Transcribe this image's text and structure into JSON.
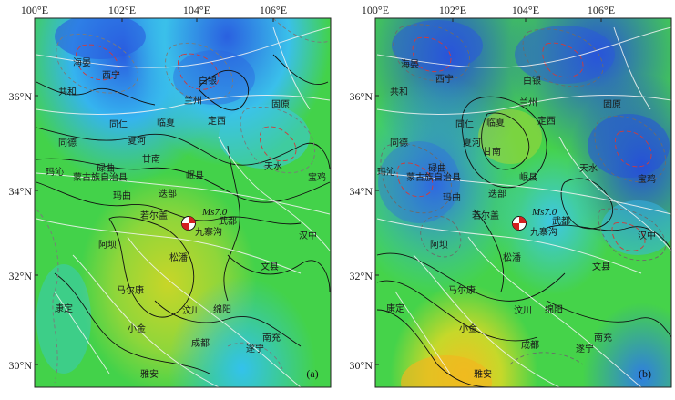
{
  "figure": {
    "x_ticks": [
      "100°E",
      "102°E",
      "104°E",
      "106°E"
    ],
    "y_ticks": [
      "36°N",
      "34°N",
      "32°N",
      "30°N"
    ],
    "earthquake_label": "Ms7.0",
    "cities": [
      "海晏",
      "西宁",
      "共和",
      "白银",
      "兰州",
      "同仁",
      "临夏",
      "定西",
      "固原",
      "同德",
      "夏河",
      "玛沁",
      "蒙古族自治县",
      "碌曲",
      "甘南",
      "岷县",
      "天水",
      "宝鸡",
      "玛曲",
      "迭部",
      "若尔盖",
      "九寨沟",
      "武都",
      "阿坝",
      "松潘",
      "汉中",
      "马尔康",
      "文县",
      "小金",
      "汶川",
      "绵阳",
      "雅安",
      "成都",
      "遂宁",
      "南充",
      "康定"
    ],
    "colors": {
      "high": "#1f4fd8",
      "mid_high": "#33c9e8",
      "mid": "#3fd44a",
      "mid_low": "#b8d82a",
      "low": "#f0c020",
      "positive_contour": "#111111",
      "negative_contour": "#d23a3a",
      "fault": "#f5f5f5"
    }
  },
  "panels": [
    {
      "label": "(a)"
    },
    {
      "label": "(b)"
    }
  ]
}
